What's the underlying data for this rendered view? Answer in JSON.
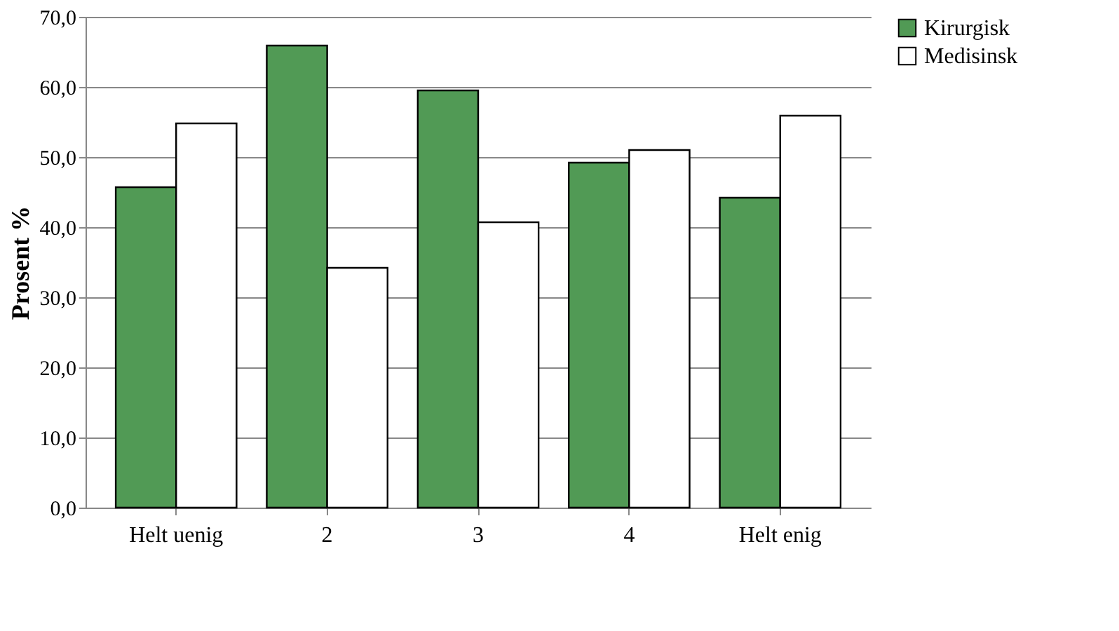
{
  "chart_data": {
    "type": "bar",
    "ylabel": "Prosent %",
    "categories": [
      "Helt uenig",
      "2",
      "3",
      "4",
      "Helt enig"
    ],
    "series": [
      {
        "name": "Kirurgisk",
        "color": "#519a55",
        "values": [
          45.7,
          65.9,
          59.5,
          49.2,
          44.2
        ]
      },
      {
        "name": "Medisinsk",
        "color": "#ffffff",
        "values": [
          54.8,
          34.2,
          40.7,
          51.0,
          55.9
        ]
      }
    ],
    "ylim": [
      0,
      70
    ],
    "yticks": [
      {
        "value": 0,
        "label": "0,0"
      },
      {
        "value": 10,
        "label": "10,0"
      },
      {
        "value": 20,
        "label": "20,0"
      },
      {
        "value": 30,
        "label": "30,0"
      },
      {
        "value": 40,
        "label": "40,0"
      },
      {
        "value": 50,
        "label": "50,0"
      },
      {
        "value": 60,
        "label": "60,0"
      },
      {
        "value": 70,
        "label": "70,0"
      }
    ],
    "grid": "y",
    "legend": "right"
  }
}
